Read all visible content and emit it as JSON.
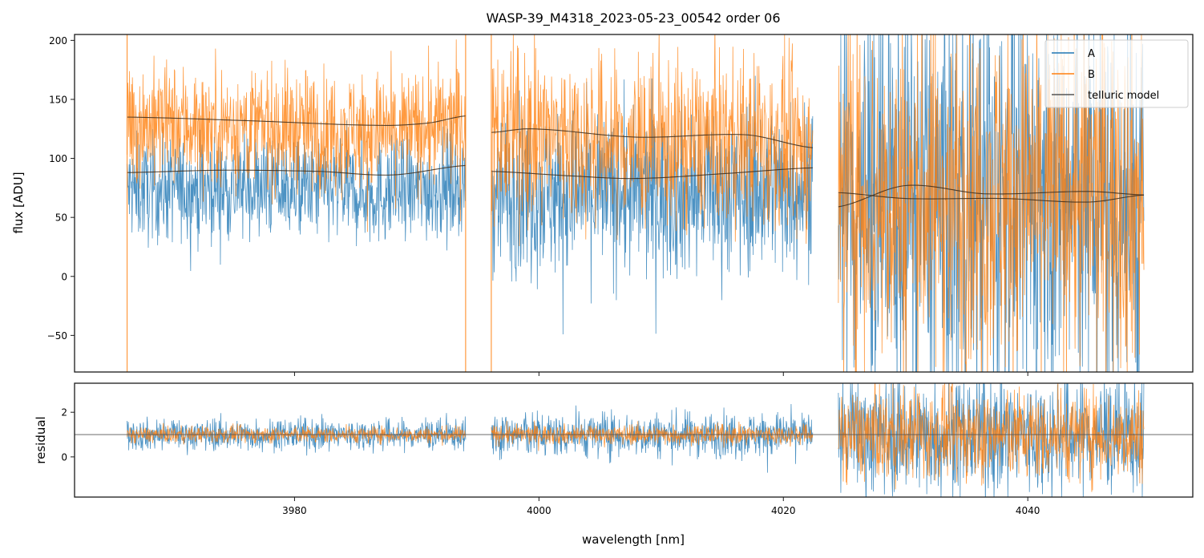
{
  "chart_data": {
    "type": "line",
    "title": "WASP-39_M4318_2023-05-23_00542  order 06",
    "xlabel": "wavelength [nm]",
    "xlim": [
      3962,
      4053.5
    ],
    "xticks": [
      3980,
      4000,
      4020,
      4040
    ],
    "xtick_labels": [
      "3980",
      "4000",
      "4020",
      "4040"
    ],
    "panels": [
      {
        "name": "flux",
        "ylabel": "flux [ADU]",
        "ylim": [
          -81,
          205
        ],
        "yticks": [
          -50,
          0,
          50,
          100,
          150,
          200
        ],
        "ytick_labels": [
          "−50",
          "0",
          "50",
          "100",
          "150",
          "200"
        ]
      },
      {
        "name": "residual",
        "ylabel": "residual",
        "ylim": [
          -1.8,
          3.3
        ],
        "yticks": [
          0,
          2
        ],
        "ytick_labels": [
          "0",
          "2"
        ],
        "reference_line": 1
      }
    ],
    "legend": {
      "placement": "top-right",
      "entries": [
        {
          "label": "A",
          "color": "#1f77b4"
        },
        {
          "label": "B",
          "color": "#ff7f0e"
        },
        {
          "label": "telluric model",
          "color": "#3a3a3a"
        }
      ]
    },
    "segments": [
      {
        "x_range": [
          3966.3,
          3994.0
        ],
        "A": {
          "mean": 72,
          "noise": 22
        },
        "B": {
          "mean": 130,
          "noise": 25
        },
        "residual_noise": {
          "A": 0.35,
          "B": 0.18
        },
        "telluric_A": {
          "x": [
            3966.3,
            3974,
            3982,
            3988,
            3994.0
          ],
          "y": [
            88,
            90,
            89,
            86,
            94
          ]
        },
        "telluric_B": {
          "x": [
            3966.3,
            3976,
            3987,
            3991,
            3994.0
          ],
          "y": [
            135,
            132,
            128,
            130,
            136
          ]
        }
      },
      {
        "x_range": [
          3996.1,
          4022.4
        ],
        "A": {
          "mean": 62,
          "noise": 35
        },
        "B": {
          "mean": 110,
          "noise": 35
        },
        "residual_noise": {
          "A": 0.5,
          "B": 0.22
        },
        "telluric_A": {
          "x": [
            3996.1,
            4003,
            4008,
            4015,
            4022.4
          ],
          "y": [
            89,
            85,
            83,
            87,
            92
          ]
        },
        "telluric_B": {
          "x": [
            3996.1,
            3999.5,
            4008,
            4017,
            4022.4
          ],
          "y": [
            122,
            125,
            118,
            120,
            109
          ]
        }
      },
      {
        "x_range": [
          4024.5,
          4049.5
        ],
        "A": {
          "mean": 65,
          "noise": 90
        },
        "B": {
          "mean": 68,
          "noise": 75
        },
        "residual_noise": {
          "A": 1.3,
          "B": 1.0
        },
        "telluric_A": {
          "x": [
            4024.5,
            4030,
            4036.5,
            4045,
            4049.5
          ],
          "y": [
            59,
            77,
            70,
            72,
            69
          ]
        },
        "telluric_B": {
          "x": [
            4024.5,
            4030,
            4038,
            4045,
            4049.5
          ],
          "y": [
            71,
            66,
            66,
            63,
            69
          ]
        }
      }
    ]
  }
}
